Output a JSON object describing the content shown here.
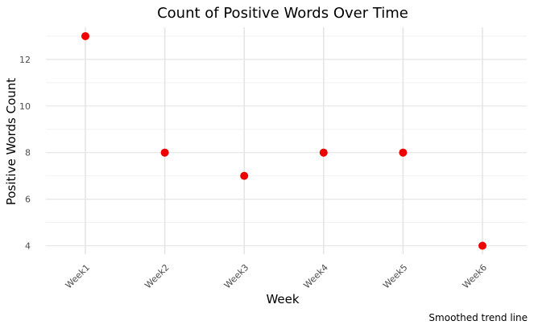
{
  "chart_data": {
    "type": "scatter",
    "title": "Count of Positive Words Over Time",
    "xlabel": "Week",
    "ylabel": "Positive Words Count",
    "caption": "Smoothed trend line",
    "categories": [
      "Week1",
      "Week2",
      "Week3",
      "Week4",
      "Week5",
      "Week6"
    ],
    "values": [
      13,
      8,
      7,
      8,
      8,
      4
    ],
    "yticks": [
      4,
      6,
      8,
      10,
      12
    ],
    "ylim": [
      3.5,
      13.4
    ],
    "grid": true,
    "legend": "none",
    "point_color": "#ee0000",
    "grid_major_color": "#e5e5e5",
    "grid_minor_color": "#f2f2f2"
  }
}
